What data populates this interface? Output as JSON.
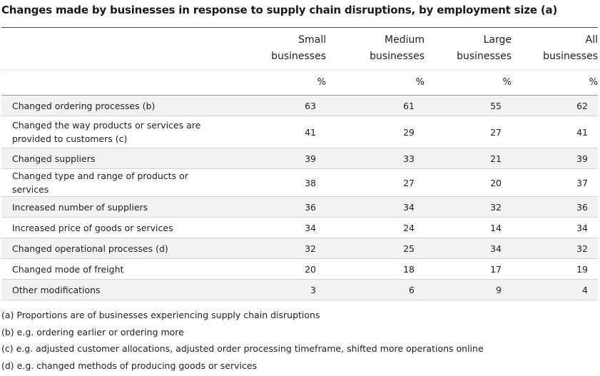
{
  "title": "Changes made by businesses in response to supply chain disruptions, by employment size (a)",
  "table": {
    "columns": [
      {
        "line1": "Small",
        "line2": "businesses",
        "unit": "%"
      },
      {
        "line1": "Medium",
        "line2": "businesses",
        "unit": "%"
      },
      {
        "line1": "Large",
        "line2": "businesses",
        "unit": "%"
      },
      {
        "line1": "All",
        "line2": "businesses",
        "unit": "%"
      }
    ],
    "rows": [
      {
        "label": "Changed ordering processes (b)",
        "values": [
          "63",
          "61",
          "55",
          "62"
        ]
      },
      {
        "label": "Changed the way products or services are provided to customers (c)",
        "values": [
          "41",
          "29",
          "27",
          "41"
        ]
      },
      {
        "label": "Changed suppliers",
        "values": [
          "39",
          "33",
          "21",
          "39"
        ]
      },
      {
        "label": "Changed type and range of products or services",
        "values": [
          "38",
          "27",
          "20",
          "37"
        ]
      },
      {
        "label": "Increased number of suppliers",
        "values": [
          "36",
          "34",
          "32",
          "36"
        ]
      },
      {
        "label": "Increased price of goods or services",
        "values": [
          "34",
          "24",
          "14",
          "34"
        ]
      },
      {
        "label": "Changed operational processes (d)",
        "values": [
          "32",
          "25",
          "34",
          "32"
        ]
      },
      {
        "label": "Changed mode of freight",
        "values": [
          "20",
          "18",
          "17",
          "19"
        ]
      },
      {
        "label": "Other modifications",
        "values": [
          "3",
          "6",
          "9",
          "4"
        ]
      }
    ]
  },
  "notes": [
    "(a) Proportions are of businesses experiencing supply chain disruptions",
    "(b) e.g. ordering earlier or ordering more",
    "(c) e.g. adjusted customer allocations, adjusted order processing timeframe, shifted more operations online",
    "(d) e.g. changed methods of producing goods or services"
  ]
}
